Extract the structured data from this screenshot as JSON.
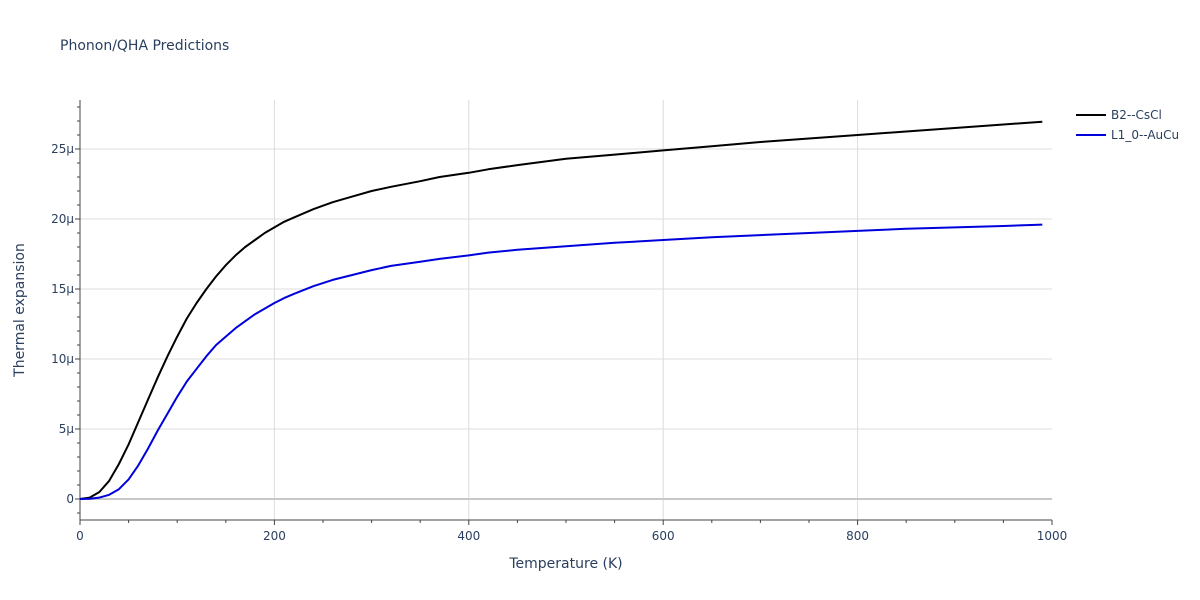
{
  "chart_data": {
    "type": "line",
    "title": "Phonon/QHA Predictions",
    "xlabel": "Temperature (K)",
    "ylabel": "Thermal expansion",
    "xlim": [
      0,
      1000
    ],
    "ylim": [
      -1.5e-06,
      2.85e-05
    ],
    "x_ticks": [
      0,
      200,
      400,
      600,
      800,
      1000
    ],
    "x_tick_labels": [
      "0",
      "200",
      "400",
      "600",
      "800",
      "1000"
    ],
    "y_ticks": [
      0,
      5e-06,
      1e-05,
      1.5e-05,
      2e-05,
      2.5e-05
    ],
    "y_tick_labels": [
      "0",
      "5μ",
      "10μ",
      "15μ",
      "20μ",
      "25μ"
    ],
    "grid": true,
    "legend_position": "top-right",
    "series": [
      {
        "name": "B2--CsCl",
        "color": "#000000",
        "x": [
          0,
          10,
          20,
          30,
          40,
          50,
          60,
          70,
          80,
          90,
          100,
          110,
          120,
          130,
          140,
          150,
          160,
          170,
          180,
          190,
          200,
          210,
          220,
          240,
          260,
          280,
          300,
          320,
          350,
          370,
          400,
          420,
          450,
          500,
          550,
          600,
          650,
          700,
          750,
          800,
          850,
          900,
          950,
          990
        ],
        "y": [
          0,
          1e-07,
          5e-07,
          1.3e-06,
          2.5e-06,
          3.9e-06,
          5.5e-06,
          7.1e-06,
          8.7e-06,
          1.02e-05,
          1.16e-05,
          1.29e-05,
          1.4e-05,
          1.5e-05,
          1.59e-05,
          1.67e-05,
          1.74e-05,
          1.8e-05,
          1.85e-05,
          1.9e-05,
          1.94e-05,
          1.98e-05,
          2.01e-05,
          2.07e-05,
          2.12e-05,
          2.16e-05,
          2.2e-05,
          2.23e-05,
          2.27e-05,
          2.3e-05,
          2.33e-05,
          2.355e-05,
          2.385e-05,
          2.43e-05,
          2.46e-05,
          2.49e-05,
          2.52e-05,
          2.55e-05,
          2.575e-05,
          2.6e-05,
          2.625e-05,
          2.65e-05,
          2.675e-05,
          2.695e-05
        ]
      },
      {
        "name": "L1_0--AuCu",
        "color": "#0000dd",
        "x": [
          0,
          10,
          20,
          30,
          40,
          50,
          60,
          70,
          80,
          90,
          100,
          110,
          120,
          130,
          140,
          150,
          160,
          170,
          180,
          190,
          200,
          210,
          220,
          240,
          260,
          280,
          300,
          320,
          350,
          370,
          400,
          420,
          450,
          500,
          550,
          600,
          650,
          700,
          750,
          800,
          850,
          900,
          950,
          990
        ],
        "y": [
          0,
          2e-08,
          1e-07,
          3e-07,
          7e-07,
          1.4e-06,
          2.4e-06,
          3.6e-06,
          4.9e-06,
          6.1e-06,
          7.3e-06,
          8.4e-06,
          9.3e-06,
          1.02e-05,
          1.1e-05,
          1.16e-05,
          1.22e-05,
          1.27e-05,
          1.32e-05,
          1.36e-05,
          1.4e-05,
          1.435e-05,
          1.465e-05,
          1.52e-05,
          1.565e-05,
          1.6e-05,
          1.635e-05,
          1.665e-05,
          1.695e-05,
          1.715e-05,
          1.74e-05,
          1.76e-05,
          1.78e-05,
          1.805e-05,
          1.83e-05,
          1.85e-05,
          1.87e-05,
          1.885e-05,
          1.9e-05,
          1.915e-05,
          1.93e-05,
          1.94e-05,
          1.95e-05,
          1.96e-05
        ]
      }
    ]
  }
}
